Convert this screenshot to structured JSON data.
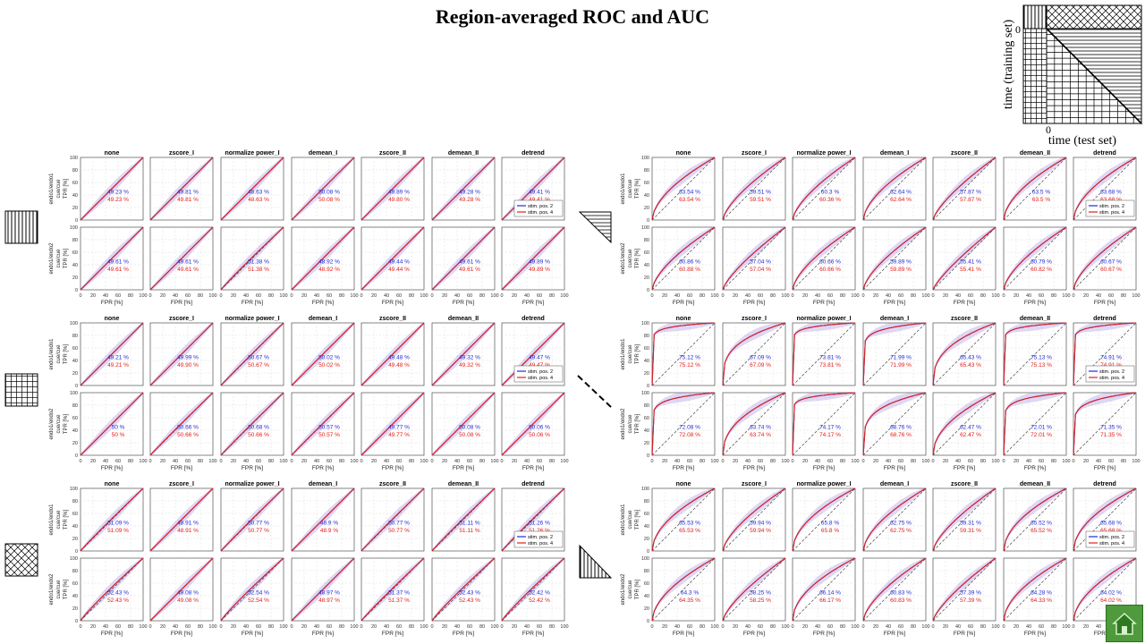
{
  "title": "Region-averaged ROC and AUC",
  "diagram": {
    "ylabel": "time  (training  set)",
    "xlabel": "time  (test set)",
    "zero_y": "0",
    "zero_x": "0"
  },
  "legend_entries": [
    "stim. pos. 2",
    "stim. pos. 4"
  ],
  "colors": {
    "series_1": "#1f2bd6",
    "series_2": "#e0201b",
    "chance": "#444444"
  },
  "chart_data": {
    "type": "line",
    "x_ticks": [
      "0",
      "20",
      "40",
      "60",
      "80",
      "100"
    ],
    "y_ticks": [
      "0",
      "20",
      "40",
      "60",
      "80",
      "100"
    ],
    "xlabel": "FPR [%]",
    "ylabel": "TPR [%]",
    "row_labels": [
      "endo1/endo1\ncue/cue",
      "endo1/endo2\ncue/cue"
    ],
    "methods": [
      "none",
      "zscore_I",
      "normalize power_I",
      "demean_I",
      "zscore_II",
      "demean_II",
      "detrend"
    ],
    "xlim": [
      0,
      100
    ],
    "ylim": [
      0,
      100
    ],
    "grid": true,
    "series": [
      {
        "name": "stim. pos. 2"
      },
      {
        "name": "stim. pos. 4"
      }
    ],
    "panels": [
      {
        "auc_blue": [
          [
            "49.23 %",
            "49.81 %",
            "48.63 %",
            "50.08 %",
            "49.89 %",
            "49.28 %",
            "49.41 %"
          ],
          [
            "49.61 %",
            "49.61 %",
            "51.38 %",
            "48.92 %",
            "49.44 %",
            "49.61 %",
            "49.89 %"
          ]
        ],
        "auc_red": [
          [
            "49.23 %",
            "49.81 %",
            "48.63 %",
            "50.08 %",
            "49.80 %",
            "49.28 %",
            "49.41 %"
          ],
          [
            "49.61 %",
            "49.61 %",
            "51.38 %",
            "48.92 %",
            "49.44 %",
            "49.61 %",
            "49.89 %"
          ]
        ]
      },
      {
        "auc_blue": [
          [
            "63.54 %",
            "59.51 %",
            "60.3 %",
            "62.64 %",
            "57.87 %",
            "63.5 %",
            "63.68 %"
          ],
          [
            "60.86 %",
            "57.04 %",
            "60.66 %",
            "59.89 %",
            "55.41 %",
            "60.79 %",
            "60.67 %"
          ]
        ],
        "auc_red": [
          [
            "63.54 %",
            "59.51 %",
            "60.36 %",
            "62.64 %",
            "57.87 %",
            "63.5 %",
            "63.68 %"
          ],
          [
            "60.88 %",
            "57.04 %",
            "60.66 %",
            "59.89 %",
            "55.41 %",
            "60.82 %",
            "60.67 %"
          ]
        ]
      },
      {
        "auc_blue": [
          [
            "49.21 %",
            "49.99 %",
            "50.67 %",
            "50.02 %",
            "49.48 %",
            "49.32 %",
            "49.47 %"
          ],
          [
            "50 %",
            "50.66 %",
            "50.68 %",
            "50.57 %",
            "49.77 %",
            "50.08 %",
            "50.06 %"
          ]
        ],
        "auc_red": [
          [
            "49.21 %",
            "49.90 %",
            "50.67 %",
            "50.02 %",
            "49.48 %",
            "49.32 %",
            "49.47 %"
          ],
          [
            "50 %",
            "50.66 %",
            "50.66 %",
            "50.57 %",
            "49.77 %",
            "50.08 %",
            "50.06 %"
          ]
        ]
      },
      {
        "auc_blue": [
          [
            "75.12 %",
            "67.09 %",
            "73.81 %",
            "71.99 %",
            "65.43 %",
            "75.13 %",
            "74.91 %"
          ],
          [
            "72.08 %",
            "63.74 %",
            "74.17 %",
            "68.76 %",
            "62.47 %",
            "72.01 %",
            "71.35 %"
          ]
        ],
        "auc_red": [
          [
            "75.12 %",
            "67.09 %",
            "73.81 %",
            "71.99 %",
            "65.43 %",
            "75.13 %",
            "74.91 %"
          ],
          [
            "72.08 %",
            "63.74 %",
            "74.17 %",
            "68.76 %",
            "62.47 %",
            "72.01 %",
            "71.35 %"
          ]
        ]
      },
      {
        "auc_blue": [
          [
            "51.09 %",
            "48.91 %",
            "50.77 %",
            "48.9 %",
            "50.77 %",
            "51.11 %",
            "51.26 %"
          ],
          [
            "52.43 %",
            "49.08 %",
            "52.54 %",
            "48.97 %",
            "51.37 %",
            "52.43 %",
            "52.42 %"
          ]
        ],
        "auc_red": [
          [
            "51.09 %",
            "48.91 %",
            "50.77 %",
            "48.9 %",
            "50.77 %",
            "51.11 %",
            "51.26 %"
          ],
          [
            "52.43 %",
            "49.08 %",
            "52.54 %",
            "48.97 %",
            "51.37 %",
            "52.43 %",
            "52.42 %"
          ]
        ]
      },
      {
        "auc_blue": [
          [
            "65.53 %",
            "59.94 %",
            "65.8 %",
            "62.75 %",
            "59.31 %",
            "65.52 %",
            "65.68 %"
          ],
          [
            "64.3 %",
            "58.25 %",
            "66.14 %",
            "60.83 %",
            "57.39 %",
            "64.28 %",
            "64.02 %"
          ]
        ],
        "auc_red": [
          [
            "65.53 %",
            "59.94 %",
            "65.8 %",
            "62.75 %",
            "59.31 %",
            "65.52 %",
            "65.68 %"
          ],
          [
            "64.35 %",
            "58.25 %",
            "66.17 %",
            "60.83 %",
            "57.39 %",
            "64.33 %",
            "64.02 %"
          ]
        ]
      }
    ]
  }
}
